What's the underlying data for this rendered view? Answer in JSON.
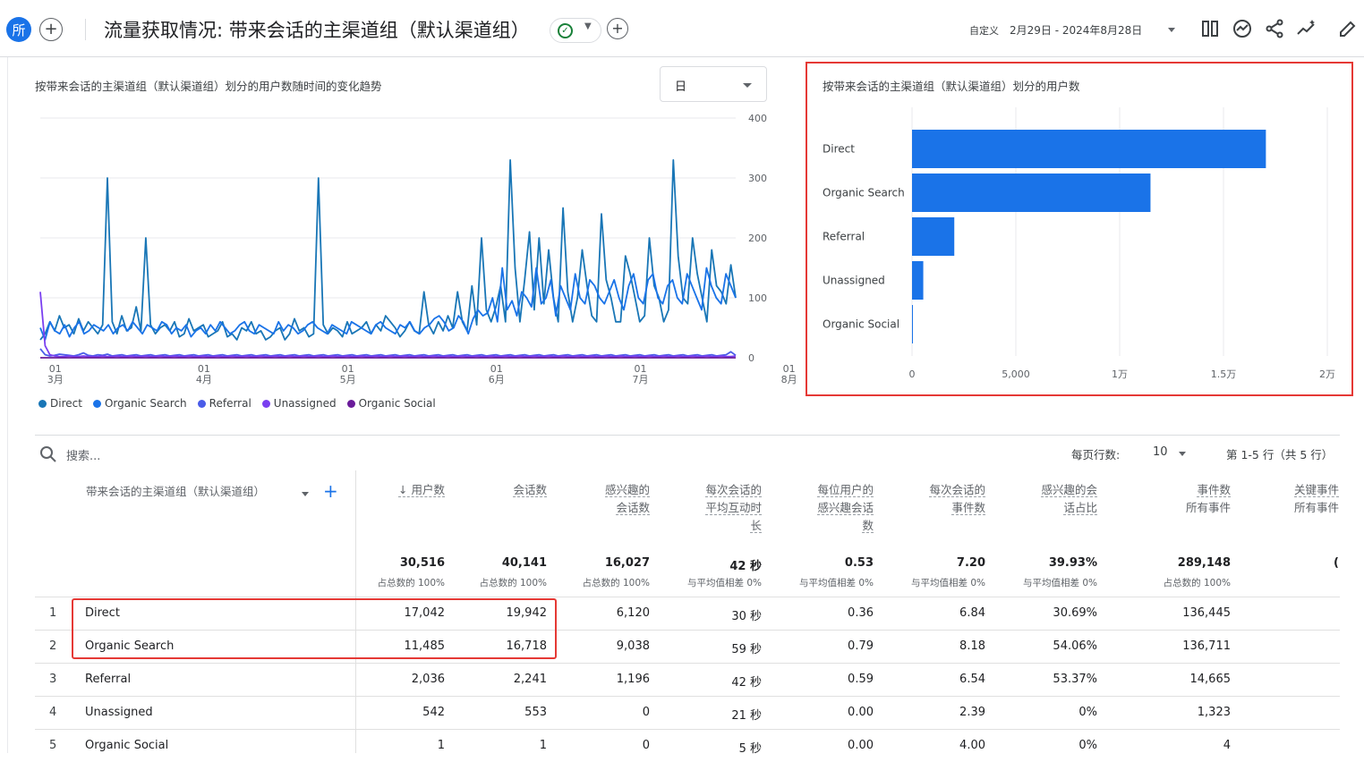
{
  "header": {
    "avatar_text": "所",
    "title": "流量获取情况: 带来会话的主渠道组（默认渠道组）",
    "date_label": "自定义",
    "date_range": "2月29日 - 2024年8月28日"
  },
  "line_panel": {
    "title": "按带来会话的主渠道组（默认渠道组）划分的用户数随时间的变化趋势",
    "granularity": "日",
    "y_ticks": [
      "400",
      "300",
      "200",
      "100",
      "0"
    ],
    "x_ticks": [
      [
        "01",
        "3月"
      ],
      [
        "01",
        "4月"
      ],
      [
        "01",
        "5月"
      ],
      [
        "01",
        "6月"
      ],
      [
        "01",
        "7月"
      ],
      [
        "01",
        "8月"
      ]
    ],
    "legend": [
      {
        "name": "Direct",
        "color": "#1976b6"
      },
      {
        "name": "Organic Search",
        "color": "#1a73e8"
      },
      {
        "name": "Referral",
        "color": "#4a5ce8"
      },
      {
        "name": "Unassigned",
        "color": "#7a3ff0"
      },
      {
        "name": "Organic Social",
        "color": "#6a1b9a"
      }
    ]
  },
  "chart_data": [
    {
      "type": "line",
      "title": "按带来会话的主渠道组（默认渠道组）划分的用户数随时间的变化趋势",
      "x_range": [
        "2024-02-29",
        "2024-08-28"
      ],
      "x_ticks": [
        "3月 01",
        "4月 01",
        "5月 01",
        "6月 01",
        "7月 01",
        "8月 01"
      ],
      "ylim": [
        0,
        400
      ],
      "y_ticks": [
        0,
        100,
        200,
        300,
        400
      ],
      "series": [
        {
          "name": "Direct",
          "color": "#1976b6",
          "values": [
            30,
            40,
            60,
            45,
            70,
            50,
            55,
            40,
            65,
            45,
            60,
            50,
            40,
            55,
            300,
            60,
            40,
            70,
            45,
            50,
            85,
            45,
            200,
            55,
            40,
            50,
            55,
            45,
            60,
            35,
            40,
            65,
            45,
            50,
            55,
            35,
            40,
            45,
            60,
            35,
            40,
            30,
            50,
            45,
            60,
            40,
            45,
            30,
            35,
            45,
            50,
            30,
            40,
            65,
            45,
            50,
            35,
            40,
            300,
            55,
            40,
            50,
            45,
            35,
            60,
            40,
            45,
            50,
            60,
            40,
            55,
            45,
            70,
            60,
            50,
            35,
            45,
            60,
            45,
            40,
            110,
            55,
            40,
            60,
            45,
            70,
            50,
            110,
            60,
            45,
            120,
            55,
            200,
            80,
            60,
            85,
            120,
            60,
            330,
            150,
            60,
            130,
            210,
            80,
            200,
            90,
            180,
            100,
            60,
            250,
            110,
            60,
            100,
            180,
            120,
            70,
            60,
            240,
            130,
            100,
            60,
            60,
            170,
            140,
            100,
            60,
            70,
            200,
            120,
            100,
            60,
            80,
            330,
            170,
            100,
            90,
            200,
            140,
            100,
            60,
            180,
            120,
            110,
            90,
            155,
            100
          ]
        },
        {
          "name": "Organic Search",
          "color": "#1a73e8",
          "values": [
            50,
            30,
            60,
            45,
            40,
            55,
            35,
            50,
            60,
            40,
            45,
            55,
            50,
            45,
            55,
            40,
            50,
            55,
            45,
            60,
            50,
            40,
            55,
            50,
            45,
            60,
            55,
            40,
            50,
            45,
            55,
            35,
            45,
            50,
            40,
            55,
            45,
            60,
            50,
            40,
            45,
            55,
            60,
            45,
            40,
            55,
            50,
            45,
            40,
            60,
            45,
            55,
            50,
            40,
            45,
            55,
            60,
            50,
            45,
            40,
            55,
            50,
            45,
            40,
            60,
            55,
            50,
            45,
            40,
            55,
            60,
            50,
            45,
            40,
            55,
            50,
            60,
            45,
            40,
            50,
            55,
            65,
            70,
            60,
            45,
            50,
            70,
            60,
            40,
            65,
            80,
            70,
            75,
            100,
            60,
            150,
            80,
            95,
            70,
            110,
            100,
            85,
            150,
            90,
            100,
            130,
            70,
            120,
            100,
            80,
            140,
            100,
            90,
            130,
            120,
            100,
            90,
            110,
            130,
            100,
            80,
            120,
            140,
            100,
            90,
            130,
            140,
            100,
            90,
            120,
            130,
            100,
            90,
            140,
            120,
            100,
            80,
            150,
            120,
            100,
            90,
            140,
            120,
            100
          ]
        },
        {
          "name": "Referral",
          "color": "#4a5ce8",
          "values": [
            15,
            5,
            3,
            4,
            6,
            5,
            4,
            3,
            5,
            8,
            4,
            3,
            5,
            4,
            6,
            3,
            4,
            5,
            3,
            4,
            5,
            3,
            4,
            5,
            3,
            4,
            5,
            3,
            4,
            5,
            3,
            4,
            5,
            3,
            4,
            5,
            3,
            4,
            5,
            3,
            4,
            5,
            3,
            4,
            5,
            3,
            4,
            5,
            3,
            4,
            5,
            3,
            4,
            5,
            3,
            4,
            5,
            3,
            4,
            5,
            3,
            4,
            5,
            3,
            4,
            5,
            3,
            4,
            5,
            3,
            4,
            5,
            3,
            4,
            5,
            3,
            4,
            5,
            3,
            4,
            5,
            3,
            4,
            5,
            3,
            4,
            5,
            3,
            4,
            5,
            3,
            4,
            5,
            3,
            4,
            5,
            3,
            4,
            5,
            3,
            4,
            5,
            3,
            4,
            5,
            3,
            4,
            5,
            3,
            4,
            5,
            3,
            4,
            5,
            3,
            4,
            5,
            3,
            4,
            5,
            3,
            4,
            5,
            3,
            4,
            5,
            3,
            4,
            5,
            3,
            4,
            5,
            3,
            4,
            5,
            3,
            4,
            5,
            3,
            4,
            5,
            3,
            4,
            5,
            10,
            4
          ]
        },
        {
          "name": "Unassigned",
          "color": "#7a3ff0",
          "values": [
            110,
            20,
            5,
            3,
            2,
            2,
            3,
            2,
            2,
            3,
            2,
            2,
            2,
            3,
            2,
            2,
            3,
            2,
            2,
            3,
            2,
            2,
            3,
            2,
            2,
            3,
            2,
            2,
            3,
            2,
            2,
            3,
            2,
            2,
            3,
            2,
            2,
            3,
            2,
            2,
            3,
            2,
            2,
            3,
            2,
            2,
            3,
            2,
            2,
            3,
            2,
            2,
            3,
            2,
            2,
            3,
            2,
            2,
            3,
            2,
            2,
            3,
            2,
            2,
            3,
            2,
            2,
            3,
            2,
            2,
            3,
            2,
            2,
            3,
            2,
            2,
            3,
            2,
            2,
            3,
            2,
            2,
            3,
            2,
            2,
            3,
            2,
            2,
            3,
            2,
            2,
            3,
            2,
            2,
            3,
            2,
            2,
            3,
            2,
            2,
            3,
            2,
            2,
            3,
            2,
            2,
            3,
            2,
            2,
            3,
            2,
            2,
            3,
            2,
            2,
            3,
            2,
            2,
            3,
            2,
            2,
            3,
            2,
            2,
            3,
            2,
            2,
            3,
            2,
            2,
            3,
            2,
            2,
            3,
            2,
            2,
            3,
            2,
            2,
            3,
            2,
            2,
            3,
            2,
            2,
            3
          ]
        },
        {
          "name": "Organic Social",
          "color": "#6a1b9a",
          "values": [
            0,
            0,
            0,
            0,
            0,
            0,
            0,
            0,
            0,
            0,
            0,
            0,
            0,
            0,
            0,
            0,
            0,
            0,
            0,
            0,
            0,
            0,
            0,
            0,
            0,
            0,
            0,
            0,
            0,
            0,
            0,
            0,
            0,
            0,
            0,
            0,
            0,
            0,
            0,
            0,
            0,
            0,
            0,
            0,
            0,
            0,
            0,
            0,
            0,
            0,
            0,
            0,
            0,
            0,
            0,
            0,
            0,
            0,
            0,
            0,
            0,
            0,
            0,
            0,
            0,
            0,
            0,
            0,
            0,
            0,
            0,
            0,
            0,
            0,
            0,
            0,
            0,
            0,
            0,
            0,
            0,
            0,
            0,
            0,
            0,
            0,
            0,
            0,
            0,
            0,
            0,
            0,
            0,
            0,
            0,
            0,
            0,
            0,
            0,
            0,
            0,
            0,
            0,
            0,
            0,
            0,
            0,
            0,
            0,
            0,
            0,
            0,
            0,
            0,
            0,
            0,
            0,
            0,
            0,
            0,
            0,
            0,
            0,
            0,
            0,
            0,
            0,
            0,
            0,
            0,
            0,
            0,
            0,
            0,
            0,
            0,
            0,
            0,
            0,
            0,
            0,
            0,
            0,
            0,
            0,
            0
          ]
        }
      ]
    },
    {
      "type": "bar",
      "orientation": "horizontal",
      "title": "按带来会话的主渠道组（默认渠道组）划分的用户数",
      "categories": [
        "Direct",
        "Organic Search",
        "Referral",
        "Unassigned",
        "Organic Social"
      ],
      "values": [
        17042,
        11485,
        2036,
        542,
        1
      ],
      "xlim": [
        0,
        20000
      ],
      "x_tick_labels": [
        "0",
        "5,000",
        "1万",
        "1.5万",
        "2万"
      ],
      "color": "#1a73e8"
    }
  ],
  "table": {
    "search_placeholder": "搜索...",
    "rows_per_page_label": "每页行数:",
    "rows_per_page_value": "10",
    "pagination": "第 1-5 行（共 5 行）",
    "dimension_header": "带来会话的主渠道组（默认渠道组）",
    "columns": [
      {
        "l1": "↓ 用户数",
        "l2": "",
        "l3": "",
        "total": "30,516",
        "sub": "占总数的 100%"
      },
      {
        "l1": "会话数",
        "l2": "",
        "l3": "",
        "total": "40,141",
        "sub": "占总数的 100%"
      },
      {
        "l1": "感兴趣的",
        "l2": "会话数",
        "l3": "",
        "total": "16,027",
        "sub": "占总数的 100%"
      },
      {
        "l1": "每次会话的",
        "l2": "平均互动时",
        "l3": "长",
        "total": "42 秒",
        "sub": "与平均值相差 0%"
      },
      {
        "l1": "每位用户的",
        "l2": "感兴趣会话",
        "l3": "数",
        "total": "0.53",
        "sub": "与平均值相差 0%"
      },
      {
        "l1": "每次会话的",
        "l2": "事件数",
        "l3": "",
        "total": "7.20",
        "sub": "与平均值相差 0%"
      },
      {
        "l1": "感兴趣的会",
        "l2": "话占比",
        "l3": "",
        "total": "39.93%",
        "sub": "与平均值相差 0%"
      },
      {
        "l1": "事件数",
        "l2": "所有事件",
        "l3": "",
        "total": "289,148",
        "sub": "占总数的 100%"
      },
      {
        "l1": "关键事件",
        "l2": "所有事件",
        "l3": "",
        "total": "(",
        "sub": ""
      }
    ],
    "rows": [
      {
        "idx": "1",
        "name": "Direct",
        "vals": [
          "17,042",
          "19,942",
          "6,120",
          "30 秒",
          "0.36",
          "6.84",
          "30.69%",
          "136,445"
        ]
      },
      {
        "idx": "2",
        "name": "Organic Search",
        "vals": [
          "11,485",
          "16,718",
          "9,038",
          "59 秒",
          "0.79",
          "8.18",
          "54.06%",
          "136,711"
        ]
      },
      {
        "idx": "3",
        "name": "Referral",
        "vals": [
          "2,036",
          "2,241",
          "1,196",
          "42 秒",
          "0.59",
          "6.54",
          "53.37%",
          "14,665"
        ]
      },
      {
        "idx": "4",
        "name": "Unassigned",
        "vals": [
          "542",
          "553",
          "0",
          "21 秒",
          "0.00",
          "2.39",
          "0%",
          "1,323"
        ]
      },
      {
        "idx": "5",
        "name": "Organic Social",
        "vals": [
          "1",
          "1",
          "0",
          "5 秒",
          "0.00",
          "4.00",
          "0%",
          "4"
        ]
      }
    ]
  }
}
